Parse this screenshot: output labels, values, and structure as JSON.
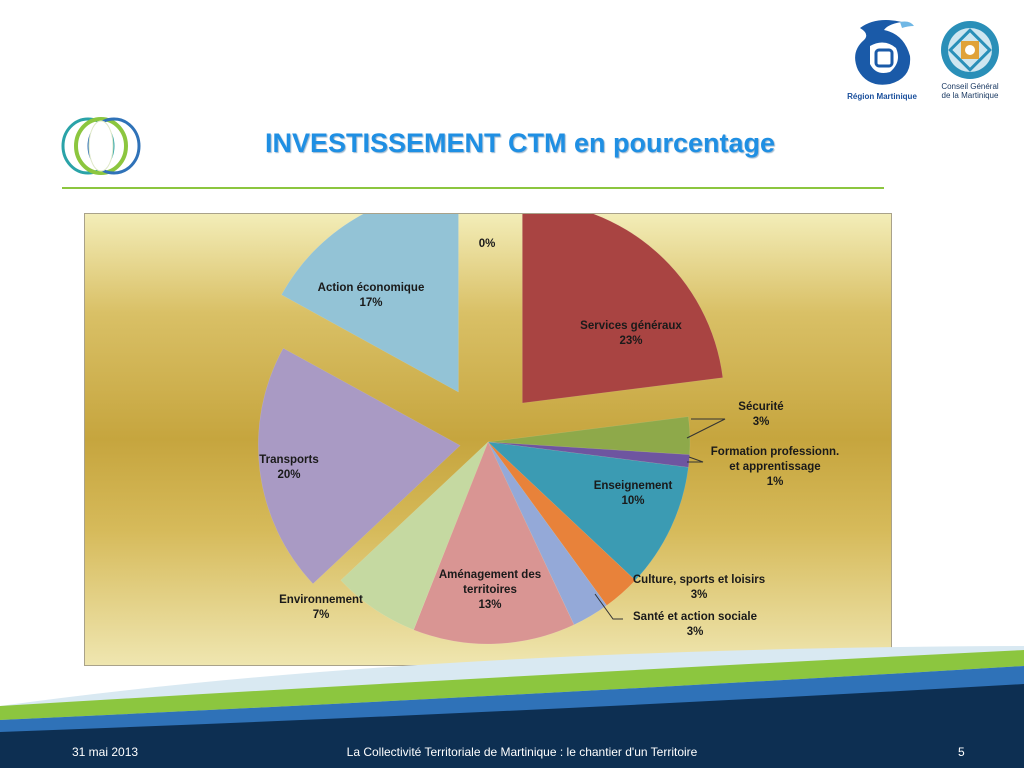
{
  "slide": {
    "title": "INVESTISSEMENT CTM en pourcentage",
    "footer": {
      "date": "31 mai 2013",
      "center": "La Collectivité Territoriale de Martinique : le chantier d'un Territoire",
      "page": "5"
    },
    "logos": {
      "region": "Région Martinique",
      "cg_line1": "Conseil Général",
      "cg_line2": "de la Martinique"
    }
  },
  "colors": {
    "title": "#1f8fe3",
    "rule": "#8cc63f",
    "footer_band": "#0d2f52"
  },
  "chart_data": {
    "type": "pie",
    "title": "",
    "slices": [
      {
        "label": [
          "0%"
        ],
        "value": 0,
        "color": "#cc0000"
      },
      {
        "label": [
          "Services généraux",
          "23%"
        ],
        "value": 23,
        "color": "#a94442"
      },
      {
        "label": [
          "Sécurité",
          "3%"
        ],
        "value": 3,
        "color": "#8ea94a"
      },
      {
        "label": [
          "Formation professionn.",
          "et apprentissage",
          "1%"
        ],
        "value": 1,
        "color": "#6e55a0"
      },
      {
        "label": [
          "Enseignement",
          "10%"
        ],
        "value": 10,
        "color": "#3b9bb3"
      },
      {
        "label": [
          "Culture, sports et loisirs",
          "3%"
        ],
        "value": 3,
        "color": "#e8823a"
      },
      {
        "label": [
          "Santé et action sociale",
          "3%"
        ],
        "value": 3,
        "color": "#94a9d8"
      },
      {
        "label": [
          "Aménagement des",
          "territoires",
          "13%"
        ],
        "value": 13,
        "color": "#d99593"
      },
      {
        "label": [
          "Environnement",
          "7%"
        ],
        "value": 7,
        "color": "#c5d9a1"
      },
      {
        "label": [
          "Transports",
          "20%"
        ],
        "value": 20,
        "color": "#a99ac4"
      },
      {
        "label": [
          "Action économique",
          "17%"
        ],
        "value": 17,
        "color": "#93c3d6"
      }
    ]
  }
}
